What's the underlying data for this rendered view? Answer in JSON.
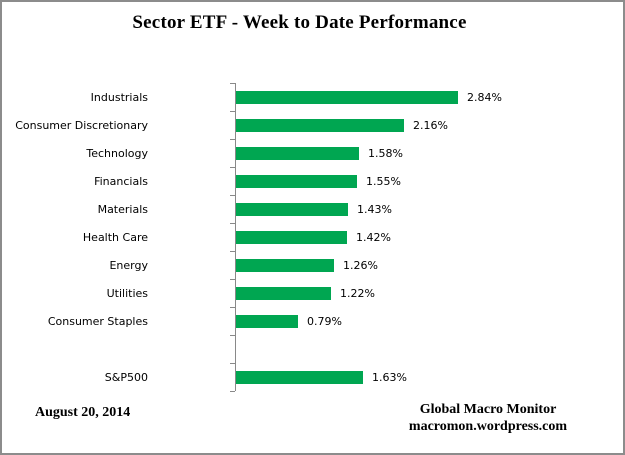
{
  "title": "Sector ETF - Week to Date Performance",
  "footer": {
    "date": "August 20, 2014",
    "source_line1": "Global Macro Monitor",
    "source_line2": "macromon.wordpress.com"
  },
  "colors": {
    "bar": "#00A651",
    "axis": "#898989",
    "text": "#000000"
  },
  "chart_data": {
    "type": "bar",
    "orientation": "horizontal",
    "title": "Sector ETF - Week to Date Performance",
    "xlabel": "",
    "ylabel": "",
    "xlim": [
      0,
      3.0
    ],
    "grid": false,
    "legend": null,
    "bar_color": "#00A651",
    "categories": [
      "Industrials",
      "Consumer Discretionary",
      "Technology",
      "Financials",
      "Materials",
      "Health Care",
      "Energy",
      "Utilities",
      "Consumer Staples",
      "",
      "S&P500"
    ],
    "values": [
      2.84,
      2.16,
      1.58,
      1.55,
      1.43,
      1.42,
      1.26,
      1.22,
      0.79,
      null,
      1.63
    ],
    "value_labels": [
      "2.84%",
      "2.16%",
      "1.58%",
      "1.55%",
      "1.43%",
      "1.42%",
      "1.26%",
      "1.22%",
      "0.79%",
      "",
      "1.63%"
    ]
  }
}
